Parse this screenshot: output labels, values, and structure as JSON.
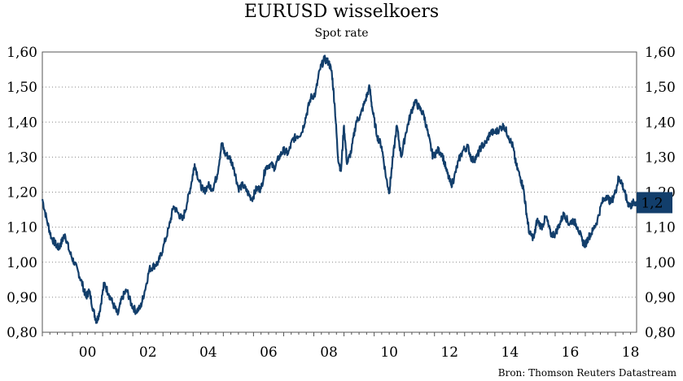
{
  "chart_data": {
    "type": "line",
    "title": "EURUSD wisselkoers",
    "subtitle": "Spot rate",
    "source": "Bron: Thomson Reuters Datastream",
    "xlabel": "",
    "ylabel": "",
    "ylim": [
      0.8,
      1.6
    ],
    "xlim": [
      1999.0,
      2018.7
    ],
    "grid": "horizontal-dotted",
    "y_ticks": [
      "0,80",
      "0,90",
      "1,00",
      "1,10",
      "1,20",
      "1,30",
      "1,40",
      "1,50",
      "1,60"
    ],
    "x_ticks": [
      "00",
      "02",
      "04",
      "06",
      "08",
      "10",
      "12",
      "14",
      "16",
      "18"
    ],
    "last_value_label": "1,2",
    "last_value": 1.17,
    "series": [
      {
        "color": "#123e6b",
        "points": [
          [
            1999.0,
            1.18
          ],
          [
            1999.15,
            1.12
          ],
          [
            1999.3,
            1.07
          ],
          [
            1999.45,
            1.05
          ],
          [
            1999.55,
            1.04
          ],
          [
            1999.65,
            1.06
          ],
          [
            1999.75,
            1.08
          ],
          [
            1999.9,
            1.03
          ],
          [
            2000.05,
            1.0
          ],
          [
            2000.2,
            0.97
          ],
          [
            2000.35,
            0.93
          ],
          [
            2000.45,
            0.9
          ],
          [
            2000.55,
            0.92
          ],
          [
            2000.7,
            0.86
          ],
          [
            2000.8,
            0.83
          ],
          [
            2000.9,
            0.86
          ],
          [
            2001.05,
            0.94
          ],
          [
            2001.2,
            0.91
          ],
          [
            2001.35,
            0.88
          ],
          [
            2001.5,
            0.85
          ],
          [
            2001.65,
            0.9
          ],
          [
            2001.8,
            0.92
          ],
          [
            2001.95,
            0.88
          ],
          [
            2002.1,
            0.86
          ],
          [
            2002.25,
            0.87
          ],
          [
            2002.4,
            0.92
          ],
          [
            2002.55,
            0.98
          ],
          [
            2002.7,
            0.99
          ],
          [
            2002.85,
            1.0
          ],
          [
            2003.0,
            1.04
          ],
          [
            2003.2,
            1.1
          ],
          [
            2003.35,
            1.16
          ],
          [
            2003.5,
            1.14
          ],
          [
            2003.65,
            1.12
          ],
          [
            2003.8,
            1.17
          ],
          [
            2003.95,
            1.23
          ],
          [
            2004.05,
            1.28
          ],
          [
            2004.2,
            1.23
          ],
          [
            2004.35,
            1.2
          ],
          [
            2004.5,
            1.22
          ],
          [
            2004.65,
            1.21
          ],
          [
            2004.8,
            1.25
          ],
          [
            2004.95,
            1.34
          ],
          [
            2005.05,
            1.31
          ],
          [
            2005.2,
            1.3
          ],
          [
            2005.35,
            1.27
          ],
          [
            2005.5,
            1.21
          ],
          [
            2005.65,
            1.22
          ],
          [
            2005.8,
            1.2
          ],
          [
            2005.95,
            1.18
          ],
          [
            2006.1,
            1.21
          ],
          [
            2006.25,
            1.21
          ],
          [
            2006.4,
            1.27
          ],
          [
            2006.55,
            1.28
          ],
          [
            2006.7,
            1.27
          ],
          [
            2006.85,
            1.3
          ],
          [
            2007.0,
            1.32
          ],
          [
            2007.15,
            1.31
          ],
          [
            2007.3,
            1.35
          ],
          [
            2007.45,
            1.36
          ],
          [
            2007.6,
            1.37
          ],
          [
            2007.75,
            1.42
          ],
          [
            2007.9,
            1.47
          ],
          [
            2008.05,
            1.48
          ],
          [
            2008.2,
            1.55
          ],
          [
            2008.35,
            1.58
          ],
          [
            2008.5,
            1.57
          ],
          [
            2008.6,
            1.54
          ],
          [
            2008.7,
            1.44
          ],
          [
            2008.8,
            1.3
          ],
          [
            2008.9,
            1.26
          ],
          [
            2009.0,
            1.39
          ],
          [
            2009.1,
            1.28
          ],
          [
            2009.25,
            1.32
          ],
          [
            2009.4,
            1.4
          ],
          [
            2009.55,
            1.42
          ],
          [
            2009.7,
            1.46
          ],
          [
            2009.85,
            1.5
          ],
          [
            2009.95,
            1.43
          ],
          [
            2010.1,
            1.36
          ],
          [
            2010.25,
            1.33
          ],
          [
            2010.4,
            1.24
          ],
          [
            2010.5,
            1.2
          ],
          [
            2010.6,
            1.28
          ],
          [
            2010.75,
            1.39
          ],
          [
            2010.9,
            1.3
          ],
          [
            2011.05,
            1.37
          ],
          [
            2011.2,
            1.42
          ],
          [
            2011.35,
            1.46
          ],
          [
            2011.5,
            1.44
          ],
          [
            2011.65,
            1.42
          ],
          [
            2011.8,
            1.36
          ],
          [
            2011.95,
            1.3
          ],
          [
            2012.1,
            1.32
          ],
          [
            2012.25,
            1.31
          ],
          [
            2012.4,
            1.26
          ],
          [
            2012.55,
            1.22
          ],
          [
            2012.65,
            1.24
          ],
          [
            2012.8,
            1.29
          ],
          [
            2012.95,
            1.32
          ],
          [
            2013.1,
            1.33
          ],
          [
            2013.25,
            1.29
          ],
          [
            2013.4,
            1.3
          ],
          [
            2013.55,
            1.33
          ],
          [
            2013.7,
            1.34
          ],
          [
            2013.85,
            1.37
          ],
          [
            2014.0,
            1.37
          ],
          [
            2014.15,
            1.38
          ],
          [
            2014.3,
            1.39
          ],
          [
            2014.45,
            1.36
          ],
          [
            2014.6,
            1.33
          ],
          [
            2014.7,
            1.28
          ],
          [
            2014.85,
            1.24
          ],
          [
            2014.95,
            1.21
          ],
          [
            2015.05,
            1.14
          ],
          [
            2015.15,
            1.08
          ],
          [
            2015.3,
            1.07
          ],
          [
            2015.4,
            1.12
          ],
          [
            2015.55,
            1.1
          ],
          [
            2015.7,
            1.13
          ],
          [
            2015.85,
            1.08
          ],
          [
            2016.0,
            1.08
          ],
          [
            2016.15,
            1.11
          ],
          [
            2016.3,
            1.14
          ],
          [
            2016.45,
            1.11
          ],
          [
            2016.6,
            1.12
          ],
          [
            2016.75,
            1.1
          ],
          [
            2016.9,
            1.06
          ],
          [
            2017.0,
            1.05
          ],
          [
            2017.1,
            1.07
          ],
          [
            2017.25,
            1.09
          ],
          [
            2017.4,
            1.12
          ],
          [
            2017.55,
            1.17
          ],
          [
            2017.7,
            1.19
          ],
          [
            2017.85,
            1.17
          ],
          [
            2018.0,
            1.2
          ],
          [
            2018.1,
            1.24
          ],
          [
            2018.2,
            1.23
          ],
          [
            2018.3,
            1.2
          ],
          [
            2018.4,
            1.17
          ],
          [
            2018.5,
            1.16
          ],
          [
            2018.6,
            1.17
          ],
          [
            2018.7,
            1.17
          ]
        ]
      }
    ]
  }
}
